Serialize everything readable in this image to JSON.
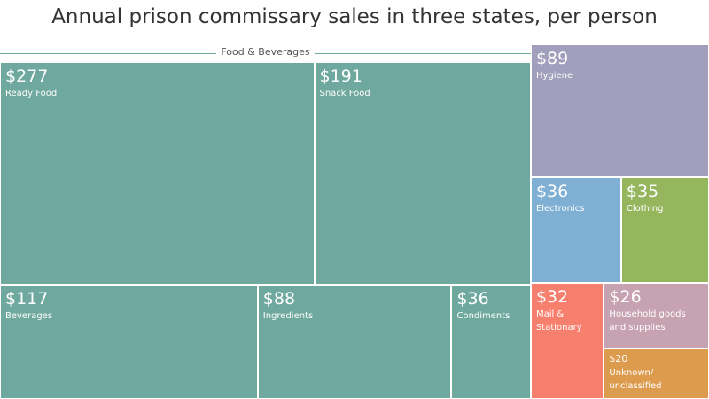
{
  "chart_data": {
    "type": "treemap",
    "title": "Annual prison commissary sales in three states, per person",
    "groups": [
      {
        "name": "Food & Beverages",
        "color": "#6fa89e",
        "items": [
          {
            "name": "Ready Food",
            "value": 277,
            "value_label": "$277"
          },
          {
            "name": "Snack Food",
            "value": 191,
            "value_label": "$191"
          },
          {
            "name": "Beverages",
            "value": 117,
            "value_label": "$117"
          },
          {
            "name": "Ingredients",
            "value": 88,
            "value_label": "$88"
          },
          {
            "name": "Condiments",
            "value": 36,
            "value_label": "$36"
          }
        ]
      }
    ],
    "items": [
      {
        "name": "Hygiene",
        "value": 89,
        "value_label": "$89",
        "color": "#a19fbc"
      },
      {
        "name": "Electronics",
        "value": 36,
        "value_label": "$36",
        "color": "#7fb0d4"
      },
      {
        "name": "Clothing",
        "value": 35,
        "value_label": "$35",
        "color": "#95b65d"
      },
      {
        "name": "Mail & Stationary",
        "value": 32,
        "value_label": "$32",
        "color": "#f77f6e"
      },
      {
        "name": "Household goods and supplies",
        "value": 26,
        "value_label": "$26",
        "color": "#c7a3b1"
      },
      {
        "name": "Unknown/ unclassified",
        "value": 20,
        "value_label": "$20",
        "color": "#dd9b4e"
      }
    ]
  }
}
